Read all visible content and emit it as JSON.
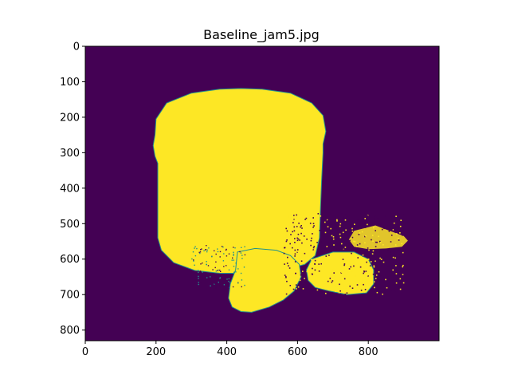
{
  "chart_data": {
    "type": "heatmap",
    "title": "Baseline_jam5.jpg",
    "xlabel": "",
    "ylabel": "",
    "xlim": [
      0,
      1000
    ],
    "ylim": [
      830,
      0
    ],
    "x_ticks": [
      0,
      200,
      400,
      600,
      800
    ],
    "y_ticks": [
      0,
      100,
      200,
      300,
      400,
      500,
      600,
      700,
      800
    ],
    "colormap": "viridis",
    "colors": {
      "background": "#440154",
      "foreground": "#fde725",
      "edge": "#21918c"
    },
    "description_values": {
      "jar_body_top_y": 120,
      "jar_body_bottom_y": 640,
      "jar_left_x": 195,
      "jar_right_x": 685
    }
  }
}
